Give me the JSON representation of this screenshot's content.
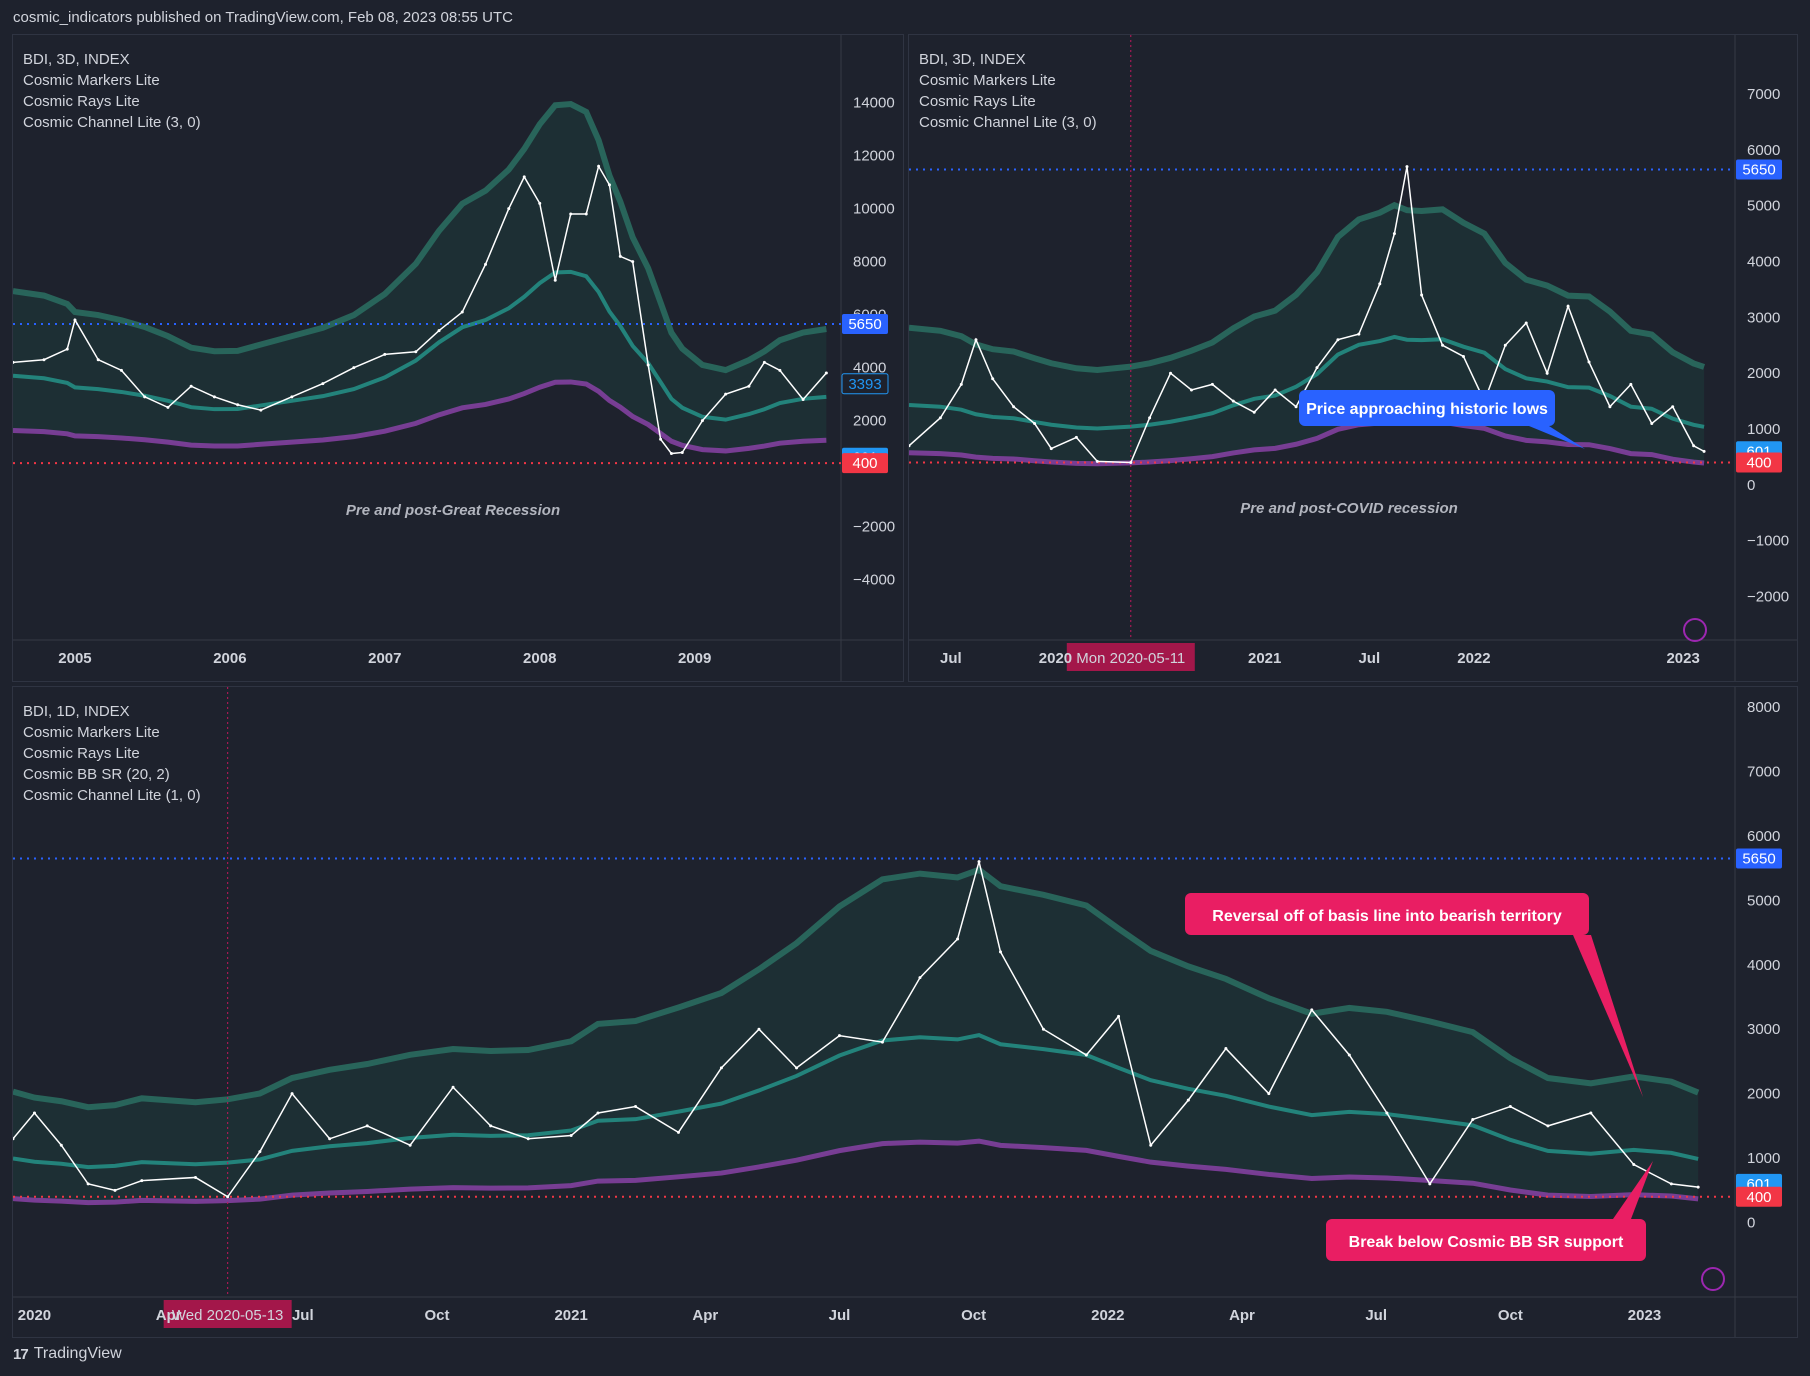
{
  "header": {
    "published": "cosmic_indicators published on TradingView.com, Feb 08, 2023 08:55 UTC"
  },
  "footer": {
    "brand": "TradingView"
  },
  "colors": {
    "bg": "#1e222d",
    "channel_upper": "#26a69a",
    "channel_basis": "#2a6b5f",
    "channel_lower": "#8e44ad",
    "blue_level": "#2962ff",
    "red_level": "#f23645",
    "price": "#ffffff"
  },
  "panels": [
    {
      "legend": [
        "BDI, 3D, INDEX",
        "Cosmic Markers Lite",
        "Cosmic Rays Lite",
        "Cosmic Channel Lite (3, 0)"
      ],
      "annotation": "Pre and post-Great Recession",
      "chart_data": {
        "type": "line",
        "title": "",
        "x_ticks": [
          "2005",
          "2006",
          "2007",
          "2008",
          "2009"
        ],
        "y_ticks": [
          "14000",
          "12000",
          "10000",
          "8000",
          "6000",
          "4000",
          "2000",
          "−2000",
          "−4000"
        ],
        "ylim": [
          -5900,
          15800
        ],
        "x": [
          2004.6,
          2004.8,
          2004.95,
          2005.0,
          2005.15,
          2005.3,
          2005.45,
          2005.6,
          2005.75,
          2005.9,
          2006.05,
          2006.2,
          2006.4,
          2006.6,
          2006.8,
          2007.0,
          2007.2,
          2007.35,
          2007.5,
          2007.65,
          2007.8,
          2007.9,
          2008.0,
          2008.1,
          2008.2,
          2008.3,
          2008.38,
          2008.45,
          2008.52,
          2008.6,
          2008.7,
          2008.78,
          2008.85,
          2008.92,
          2009.05,
          2009.2,
          2009.35,
          2009.45,
          2009.55,
          2009.7,
          2009.85
        ],
        "price": [
          4200,
          4300,
          4700,
          5800,
          4300,
          3900,
          2900,
          2500,
          3300,
          2900,
          2600,
          2400,
          2900,
          3400,
          4000,
          4500,
          4600,
          5400,
          6100,
          7900,
          10000,
          11200,
          10200,
          7300,
          9800,
          9800,
          11600,
          10900,
          8200,
          8000,
          4100,
          1300,
          760,
          800,
          2000,
          3000,
          3300,
          4200,
          3900,
          2800,
          3800
        ],
        "price_markers": [
          {
            "label": "5650",
            "value": 5650,
            "color": "#2962ff"
          },
          {
            "label": "3393",
            "value": 3393,
            "color": "#1e222d"
          },
          {
            "label": "601",
            "value": 601,
            "color": "#2196f3"
          },
          {
            "label": "400",
            "value": 400,
            "color": "#f23645"
          }
        ]
      }
    },
    {
      "legend": [
        "BDI, 3D, INDEX",
        "Cosmic Markers Lite",
        "Cosmic Rays Lite",
        "Cosmic Channel Lite (3, 0)"
      ],
      "annotation": "Pre and post-COVID recession",
      "callout": "Price approaching historic lows",
      "crosshair_label": "Mon 2020-05-11",
      "chart_data": {
        "type": "line",
        "title": "",
        "x_ticks": [
          "Jul",
          "2020",
          "2021",
          "Jul",
          "2022",
          "2023"
        ],
        "y_ticks": [
          "7000",
          "6000",
          "5000",
          "4000",
          "3000",
          "2000",
          "1000",
          "0",
          "−1000",
          "−2000"
        ],
        "ylim": [
          -2600,
          7700
        ],
        "x": [
          2019.3,
          2019.45,
          2019.55,
          2019.62,
          2019.7,
          2019.8,
          2019.9,
          2019.98,
          2020.1,
          2020.2,
          2020.36,
          2020.45,
          2020.55,
          2020.65,
          2020.75,
          2020.85,
          2020.95,
          2021.05,
          2021.15,
          2021.25,
          2021.35,
          2021.45,
          2021.55,
          2021.62,
          2021.68,
          2021.75,
          2021.85,
          2021.95,
          2022.05,
          2022.15,
          2022.25,
          2022.35,
          2022.45,
          2022.55,
          2022.65,
          2022.75,
          2022.85,
          2022.95,
          2023.05,
          2023.1
        ],
        "price": [
          700,
          1200,
          1800,
          2600,
          1900,
          1400,
          1100,
          650,
          850,
          420,
          400,
          1200,
          2000,
          1700,
          1800,
          1500,
          1300,
          1700,
          1400,
          2100,
          2600,
          2700,
          3600,
          4500,
          5700,
          3400,
          2500,
          2300,
          1500,
          2500,
          2900,
          2000,
          3200,
          2200,
          1400,
          1800,
          1100,
          1400,
          700,
          600
        ],
        "price_markers": [
          {
            "label": "5650",
            "value": 5650,
            "color": "#2962ff"
          },
          {
            "label": "601",
            "value": 601,
            "color": "#2196f3"
          },
          {
            "label": "400",
            "value": 400,
            "color": "#f23645"
          }
        ]
      }
    },
    {
      "legend": [
        "BDI, 1D, INDEX",
        "Cosmic Markers Lite",
        "Cosmic Rays Lite",
        "Cosmic BB SR (20, 2)",
        "Cosmic Channel Lite (1, 0)"
      ],
      "callout_top": "Reversal off of basis line into bearish territory",
      "callout_bottom": "Break below Cosmic BB SR support",
      "crosshair_label": "Wed 2020-05-13",
      "chart_data": {
        "type": "line",
        "title": "",
        "x_ticks": [
          "2020",
          "Apr",
          "Jul",
          "Oct",
          "2021",
          "Apr",
          "Jul",
          "Oct",
          "2022",
          "Apr",
          "Jul",
          "Oct",
          "2023"
        ],
        "y_ticks": [
          "8000",
          "7000",
          "6000",
          "5000",
          "4000",
          "3000",
          "2000",
          "1000",
          "0"
        ],
        "ylim": [
          -1000,
          8000
        ],
        "x": [
          2019.96,
          2020.0,
          2020.05,
          2020.1,
          2020.15,
          2020.2,
          2020.3,
          2020.36,
          2020.42,
          2020.48,
          2020.55,
          2020.62,
          2020.7,
          2020.78,
          2020.85,
          2020.92,
          2021.0,
          2021.05,
          2021.12,
          2021.2,
          2021.28,
          2021.35,
          2021.42,
          2021.5,
          2021.58,
          2021.65,
          2021.72,
          2021.76,
          2021.8,
          2021.88,
          2021.96,
          2022.02,
          2022.08,
          2022.15,
          2022.22,
          2022.3,
          2022.38,
          2022.45,
          2022.52,
          2022.6,
          2022.68,
          2022.75,
          2022.82,
          2022.9,
          2022.98,
          2023.05,
          2023.1
        ],
        "price": [
          1300,
          1700,
          1200,
          600,
          500,
          650,
          700,
          400,
          1100,
          2000,
          1300,
          1500,
          1200,
          2100,
          1500,
          1300,
          1350,
          1700,
          1800,
          1400,
          2400,
          3000,
          2400,
          2900,
          2800,
          3800,
          4400,
          5600,
          4200,
          3000,
          2600,
          3200,
          1200,
          1900,
          2700,
          2000,
          3300,
          2600,
          1700,
          600,
          1600,
          1800,
          1500,
          1700,
          900,
          600,
          550
        ],
        "price_markers": [
          {
            "label": "5650",
            "value": 5650,
            "color": "#2962ff"
          },
          {
            "label": "601",
            "value": 601,
            "color": "#2196f3"
          },
          {
            "label": "400",
            "value": 400,
            "color": "#f23645"
          }
        ]
      }
    }
  ]
}
